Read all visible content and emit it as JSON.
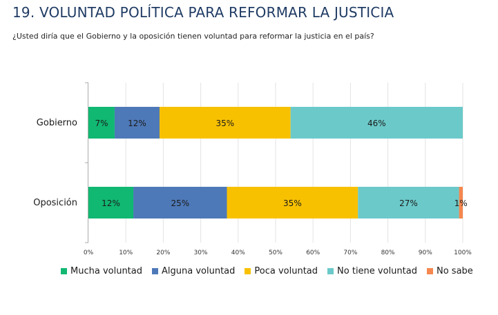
{
  "header": {
    "title": "19. VOLUNTAD POLÍTICA PARA REFORMAR LA JUSTICIA",
    "subtitle": "¿Usted diría que el Gobierno y la oposición tienen voluntad para reformar la justicia en el país?"
  },
  "chart_data": {
    "type": "bar",
    "orientation": "horizontal",
    "stacked": true,
    "title": "19. VOLUNTAD POLÍTICA PARA REFORMAR LA JUSTICIA",
    "subtitle": "¿Usted diría que el Gobierno y la oposición tienen voluntad para reformar la justicia en el país?",
    "categories": [
      "Gobierno",
      "Oposición"
    ],
    "series": [
      {
        "name": "Mucha voluntad",
        "color": "#10b872",
        "values": [
          7,
          12
        ]
      },
      {
        "name": "Alguna voluntad",
        "color": "#4e79b8",
        "values": [
          12,
          25
        ]
      },
      {
        "name": "Poca voluntad",
        "color": "#f8c100",
        "values": [
          35,
          35
        ]
      },
      {
        "name": "No tiene voluntad",
        "color": "#6bc9c9",
        "values": [
          46,
          27
        ]
      },
      {
        "name": "No sabe",
        "color": "#f5874f",
        "values": [
          0,
          1
        ]
      }
    ],
    "data_labels": [
      [
        "7%",
        "12%",
        "35%",
        "46%",
        ""
      ],
      [
        "12%",
        "25%",
        "35%",
        "27%",
        "1%"
      ]
    ],
    "xlim": [
      0,
      100
    ],
    "xticks": [
      "0%",
      "10%",
      "20%",
      "30%",
      "40%",
      "50%",
      "60%",
      "70%",
      "80%",
      "90%",
      "100%"
    ],
    "grid": true,
    "legend_position": "bottom"
  }
}
